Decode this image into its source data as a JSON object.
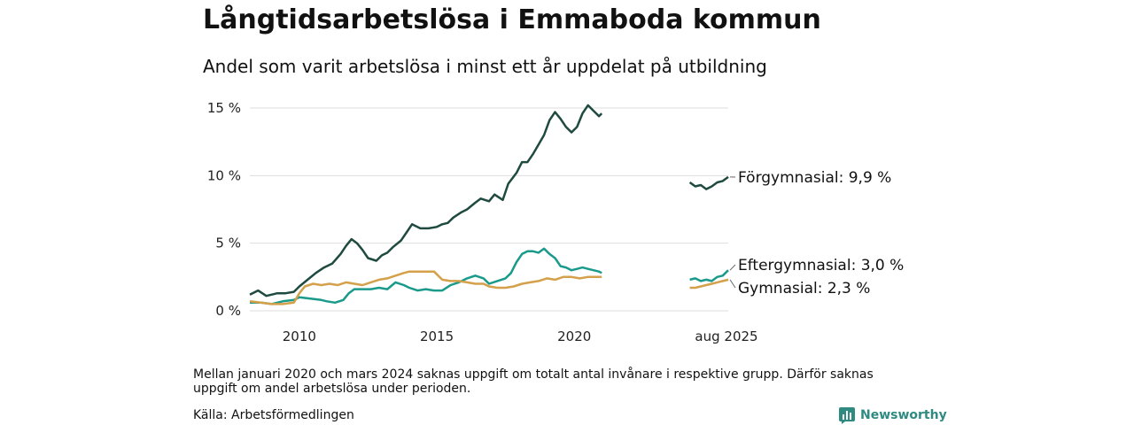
{
  "title": "Långtidsarbetslösa i Emmaboda kommun",
  "subtitle": "Andel som varit arbetslösa i minst ett år uppdelat på utbildning",
  "note": "Mellan januari 2020 och mars 2024 saknas uppgift om totalt antal invånare i respektive grupp. Därför saknas uppgift om andel arbetslösa under perioden.",
  "source": "Källa: Arbetsförmedlingen",
  "brand": "Newsworthy",
  "colors": {
    "forgymnasial": "#1f4a40",
    "eftergymnasial": "#1a9a8a",
    "gymnasial": "#d4a04a",
    "grid": "#dddddd",
    "brand": "#2f8a82"
  },
  "chart_data": {
    "type": "line",
    "ylim": [
      0,
      15
    ],
    "yticks": [
      0,
      5,
      10,
      15
    ],
    "ytick_labels": [
      "0 %",
      "5 %",
      "10 %",
      "15 %"
    ],
    "xtick_labels": [
      "2010",
      "2015",
      "2020",
      "aug 2025"
    ],
    "xticks": [
      2010,
      2015,
      2020,
      2025.6
    ],
    "xlim": [
      2008.2,
      2025.6
    ],
    "gap": [
      2021.0,
      2024.2
    ],
    "series": [
      {
        "name": "Förgymnasial",
        "key": "forgymnasial",
        "label": "Förgymnasial: 9,9 %",
        "segments": [
          [
            [
              2008.2,
              1.2
            ],
            [
              2008.5,
              1.5
            ],
            [
              2008.8,
              1.1
            ],
            [
              2009.2,
              1.3
            ],
            [
              2009.5,
              1.3
            ],
            [
              2009.8,
              1.4
            ],
            [
              2010.0,
              1.8
            ],
            [
              2010.3,
              2.3
            ],
            [
              2010.6,
              2.8
            ],
            [
              2010.9,
              3.2
            ],
            [
              2011.2,
              3.5
            ],
            [
              2011.5,
              4.2
            ],
            [
              2011.7,
              4.8
            ],
            [
              2011.9,
              5.3
            ],
            [
              2012.1,
              5.0
            ],
            [
              2012.3,
              4.5
            ],
            [
              2012.5,
              3.9
            ],
            [
              2012.8,
              3.7
            ],
            [
              2013.0,
              4.1
            ],
            [
              2013.2,
              4.3
            ],
            [
              2013.4,
              4.7
            ],
            [
              2013.7,
              5.2
            ],
            [
              2013.9,
              5.8
            ],
            [
              2014.1,
              6.4
            ],
            [
              2014.4,
              6.1
            ],
            [
              2014.7,
              6.1
            ],
            [
              2015.0,
              6.2
            ],
            [
              2015.2,
              6.4
            ],
            [
              2015.4,
              6.5
            ],
            [
              2015.6,
              6.9
            ],
            [
              2015.9,
              7.3
            ],
            [
              2016.1,
              7.5
            ],
            [
              2016.4,
              8.0
            ],
            [
              2016.6,
              8.3
            ],
            [
              2016.9,
              8.1
            ],
            [
              2017.1,
              8.6
            ],
            [
              2017.4,
              8.2
            ],
            [
              2017.6,
              9.4
            ],
            [
              2017.9,
              10.2
            ],
            [
              2018.1,
              11.0
            ],
            [
              2018.3,
              11.0
            ],
            [
              2018.5,
              11.6
            ],
            [
              2018.7,
              12.3
            ],
            [
              2018.9,
              13.0
            ],
            [
              2019.1,
              14.1
            ],
            [
              2019.3,
              14.7
            ],
            [
              2019.5,
              14.2
            ],
            [
              2019.7,
              13.6
            ],
            [
              2019.9,
              13.2
            ],
            [
              2020.1,
              13.6
            ],
            [
              2020.3,
              14.6
            ],
            [
              2020.5,
              15.2
            ],
            [
              2020.7,
              14.8
            ],
            [
              2020.9,
              14.4
            ],
            [
              2021.0,
              14.6
            ]
          ],
          [
            [
              2024.2,
              9.5
            ],
            [
              2024.4,
              9.2
            ],
            [
              2024.6,
              9.3
            ],
            [
              2024.8,
              9.0
            ],
            [
              2025.0,
              9.2
            ],
            [
              2025.2,
              9.5
            ],
            [
              2025.4,
              9.6
            ],
            [
              2025.6,
              9.9
            ]
          ]
        ]
      },
      {
        "name": "Eftergymnasial",
        "key": "eftergymnasial",
        "label": "Eftergymnasial: 3,0 %",
        "segments": [
          [
            [
              2008.2,
              0.6
            ],
            [
              2008.6,
              0.6
            ],
            [
              2009.0,
              0.5
            ],
            [
              2009.4,
              0.7
            ],
            [
              2009.8,
              0.8
            ],
            [
              2010.0,
              1.0
            ],
            [
              2010.4,
              0.9
            ],
            [
              2010.8,
              0.8
            ],
            [
              2011.0,
              0.7
            ],
            [
              2011.3,
              0.6
            ],
            [
              2011.6,
              0.8
            ],
            [
              2011.8,
              1.3
            ],
            [
              2012.0,
              1.6
            ],
            [
              2012.3,
              1.6
            ],
            [
              2012.6,
              1.6
            ],
            [
              2012.9,
              1.7
            ],
            [
              2013.2,
              1.6
            ],
            [
              2013.5,
              2.1
            ],
            [
              2013.8,
              1.9
            ],
            [
              2014.0,
              1.7
            ],
            [
              2014.3,
              1.5
            ],
            [
              2014.6,
              1.6
            ],
            [
              2014.9,
              1.5
            ],
            [
              2015.2,
              1.5
            ],
            [
              2015.5,
              1.9
            ],
            [
              2015.8,
              2.1
            ],
            [
              2016.1,
              2.4
            ],
            [
              2016.4,
              2.6
            ],
            [
              2016.7,
              2.4
            ],
            [
              2016.9,
              2.0
            ],
            [
              2017.2,
              2.2
            ],
            [
              2017.5,
              2.4
            ],
            [
              2017.7,
              2.8
            ],
            [
              2017.9,
              3.6
            ],
            [
              2018.1,
              4.2
            ],
            [
              2018.3,
              4.4
            ],
            [
              2018.5,
              4.4
            ],
            [
              2018.7,
              4.3
            ],
            [
              2018.9,
              4.6
            ],
            [
              2019.1,
              4.2
            ],
            [
              2019.3,
              3.9
            ],
            [
              2019.5,
              3.3
            ],
            [
              2019.7,
              3.2
            ],
            [
              2019.9,
              3.0
            ],
            [
              2020.1,
              3.1
            ],
            [
              2020.3,
              3.2
            ],
            [
              2020.5,
              3.1
            ],
            [
              2020.7,
              3.0
            ],
            [
              2020.9,
              2.9
            ],
            [
              2021.0,
              2.8
            ]
          ],
          [
            [
              2024.2,
              2.3
            ],
            [
              2024.4,
              2.4
            ],
            [
              2024.6,
              2.2
            ],
            [
              2024.8,
              2.3
            ],
            [
              2025.0,
              2.2
            ],
            [
              2025.2,
              2.5
            ],
            [
              2025.4,
              2.6
            ],
            [
              2025.6,
              3.0
            ]
          ]
        ]
      },
      {
        "name": "Gymnasial",
        "key": "gymnasial",
        "label": "Gymnasial: 2,3 %",
        "segments": [
          [
            [
              2008.2,
              0.7
            ],
            [
              2008.6,
              0.6
            ],
            [
              2009.0,
              0.5
            ],
            [
              2009.4,
              0.5
            ],
            [
              2009.8,
              0.6
            ],
            [
              2010.0,
              1.3
            ],
            [
              2010.2,
              1.8
            ],
            [
              2010.5,
              2.0
            ],
            [
              2010.8,
              1.9
            ],
            [
              2011.1,
              2.0
            ],
            [
              2011.4,
              1.9
            ],
            [
              2011.7,
              2.1
            ],
            [
              2012.0,
              2.0
            ],
            [
              2012.3,
              1.9
            ],
            [
              2012.6,
              2.1
            ],
            [
              2012.9,
              2.3
            ],
            [
              2013.2,
              2.4
            ],
            [
              2013.5,
              2.6
            ],
            [
              2013.8,
              2.8
            ],
            [
              2014.0,
              2.9
            ],
            [
              2014.3,
              2.9
            ],
            [
              2014.6,
              2.9
            ],
            [
              2014.9,
              2.9
            ],
            [
              2015.2,
              2.3
            ],
            [
              2015.5,
              2.2
            ],
            [
              2015.8,
              2.2
            ],
            [
              2016.1,
              2.1
            ],
            [
              2016.4,
              2.0
            ],
            [
              2016.7,
              2.0
            ],
            [
              2016.9,
              1.8
            ],
            [
              2017.2,
              1.7
            ],
            [
              2017.5,
              1.7
            ],
            [
              2017.8,
              1.8
            ],
            [
              2018.1,
              2.0
            ],
            [
              2018.4,
              2.1
            ],
            [
              2018.7,
              2.2
            ],
            [
              2019.0,
              2.4
            ],
            [
              2019.3,
              2.3
            ],
            [
              2019.6,
              2.5
            ],
            [
              2019.9,
              2.5
            ],
            [
              2020.2,
              2.4
            ],
            [
              2020.5,
              2.5
            ],
            [
              2020.8,
              2.5
            ],
            [
              2021.0,
              2.5
            ]
          ],
          [
            [
              2024.2,
              1.7
            ],
            [
              2024.4,
              1.7
            ],
            [
              2024.6,
              1.8
            ],
            [
              2024.8,
              1.9
            ],
            [
              2025.0,
              2.0
            ],
            [
              2025.2,
              2.1
            ],
            [
              2025.4,
              2.2
            ],
            [
              2025.6,
              2.3
            ]
          ]
        ]
      }
    ]
  }
}
